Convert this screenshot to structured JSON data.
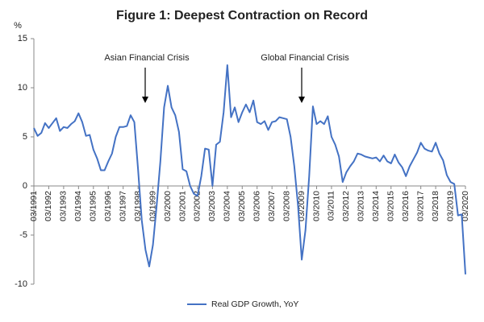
{
  "chart_data": {
    "type": "line",
    "title": "Figure 1: Deepest Contraction on Record",
    "y_unit": "%",
    "annotations": [
      "Asian Financial Crisis",
      "Global Financial Crisis"
    ],
    "categories": [
      "03/1991",
      null,
      null,
      null,
      "03/1992",
      null,
      null,
      null,
      "03/1993",
      null,
      null,
      null,
      "03/1994",
      null,
      null,
      null,
      "03/1995",
      null,
      null,
      null,
      "03/1996",
      null,
      null,
      null,
      "03/1997",
      null,
      null,
      null,
      "03/1998",
      null,
      null,
      null,
      "03/1999",
      null,
      null,
      null,
      "03/2000",
      null,
      null,
      null,
      "03/2001",
      null,
      null,
      null,
      "03/2002",
      null,
      null,
      null,
      "03/2003",
      null,
      null,
      null,
      "03/2004",
      null,
      null,
      null,
      "03/2005",
      null,
      null,
      null,
      "03/2006",
      null,
      null,
      null,
      "03/2007",
      null,
      null,
      null,
      "03/2008",
      null,
      null,
      null,
      "03/2009",
      null,
      null,
      null,
      "03/2010",
      null,
      null,
      null,
      "03/2011",
      null,
      null,
      null,
      "03/2012",
      null,
      null,
      null,
      "03/2013",
      null,
      null,
      null,
      "03/2014",
      null,
      null,
      null,
      "03/2015",
      null,
      null,
      null,
      "03/2016",
      null,
      null,
      null,
      "03/2017",
      null,
      null,
      null,
      "03/2018",
      null,
      null,
      null,
      "03/2019",
      null,
      null,
      null,
      "03/2020"
    ],
    "series": [
      {
        "name": "Real GDP Growth, YoY",
        "color": "#4472c4",
        "values": [
          5.9,
          5.1,
          5.4,
          6.4,
          5.9,
          6.4,
          6.9,
          5.6,
          6.0,
          5.9,
          6.3,
          6.6,
          7.4,
          6.5,
          5.1,
          5.2,
          3.7,
          2.8,
          1.6,
          1.6,
          2.5,
          3.3,
          5.0,
          6.0,
          6.0,
          6.1,
          7.2,
          6.5,
          1.7,
          -3.5,
          -6.5,
          -8.2,
          -6.0,
          -2.0,
          2.5,
          8.0,
          10.2,
          8.0,
          7.2,
          5.5,
          1.7,
          1.5,
          0.0,
          -0.8,
          -1.0,
          1.0,
          3.8,
          3.7,
          0.0,
          4.2,
          4.5,
          7.5,
          12.3,
          7.0,
          8.0,
          6.5,
          7.5,
          8.3,
          7.5,
          8.7,
          6.5,
          6.3,
          6.6,
          5.7,
          6.5,
          6.6,
          7.0,
          6.9,
          6.8,
          5.0,
          2.0,
          -2.0,
          -7.5,
          -4.5,
          1.0,
          8.1,
          6.3,
          6.6,
          6.3,
          7.1,
          5.0,
          4.2,
          3.0,
          0.4,
          1.4,
          2.0,
          2.5,
          3.3,
          3.2,
          3.0,
          2.9,
          2.8,
          2.9,
          2.5,
          3.1,
          2.5,
          2.3,
          3.2,
          2.4,
          1.9,
          1.0,
          2.0,
          2.7,
          3.4,
          4.4,
          3.8,
          3.6,
          3.5,
          4.4,
          3.3,
          2.6,
          1.1,
          0.4,
          0.2,
          -3.0,
          -2.9,
          -9.0
        ]
      }
    ],
    "ylim": [
      -10,
      15
    ],
    "yticks": [
      15,
      10,
      5,
      0,
      -5,
      -10
    ],
    "grid": false,
    "legend": "bottom"
  }
}
